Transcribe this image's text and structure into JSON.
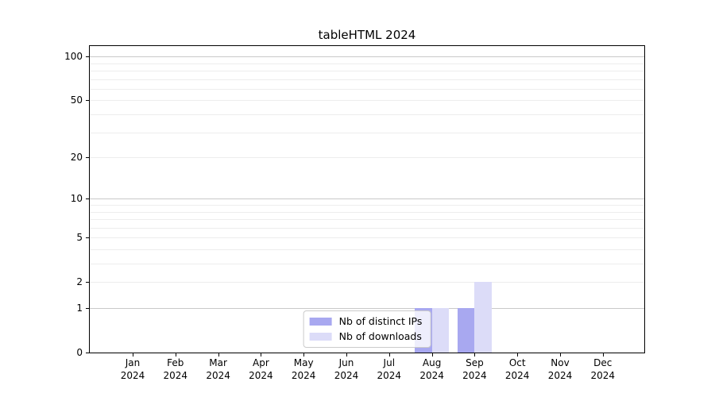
{
  "chart_data": {
    "type": "bar",
    "title": "tableHTML 2024",
    "categories": [
      "Jan 2024",
      "Feb 2024",
      "Mar 2024",
      "Apr 2024",
      "May 2024",
      "Jun 2024",
      "Jul 2024",
      "Aug 2024",
      "Sep 2024",
      "Oct 2024",
      "Nov 2024",
      "Dec 2024"
    ],
    "series": [
      {
        "name": "Nb of distinct IPs",
        "color": "#a8a8f0",
        "values": [
          0,
          0,
          0,
          0,
          0,
          0,
          0,
          1,
          1,
          0,
          0,
          0
        ]
      },
      {
        "name": "Nb of downloads",
        "color": "#dcdcf8",
        "values": [
          0,
          0,
          0,
          0,
          0,
          0,
          0,
          1,
          2,
          0,
          0,
          0
        ]
      }
    ],
    "xlabel": "",
    "ylabel": "",
    "yscale": "log1p",
    "ylim": [
      0,
      118
    ],
    "yticks": [
      0,
      1,
      2,
      5,
      10,
      20,
      50,
      100
    ],
    "grid_major_values": [
      1,
      10,
      100
    ],
    "grid_minor_values": [
      2,
      3,
      4,
      5,
      6,
      7,
      8,
      9,
      20,
      30,
      40,
      50,
      60,
      70,
      80,
      90
    ],
    "legend_position": "lower center",
    "colors": {
      "axis": "#000000",
      "grid_major": "#c9c9c9",
      "grid_minor": "#ededed",
      "background": "#ffffff"
    }
  }
}
